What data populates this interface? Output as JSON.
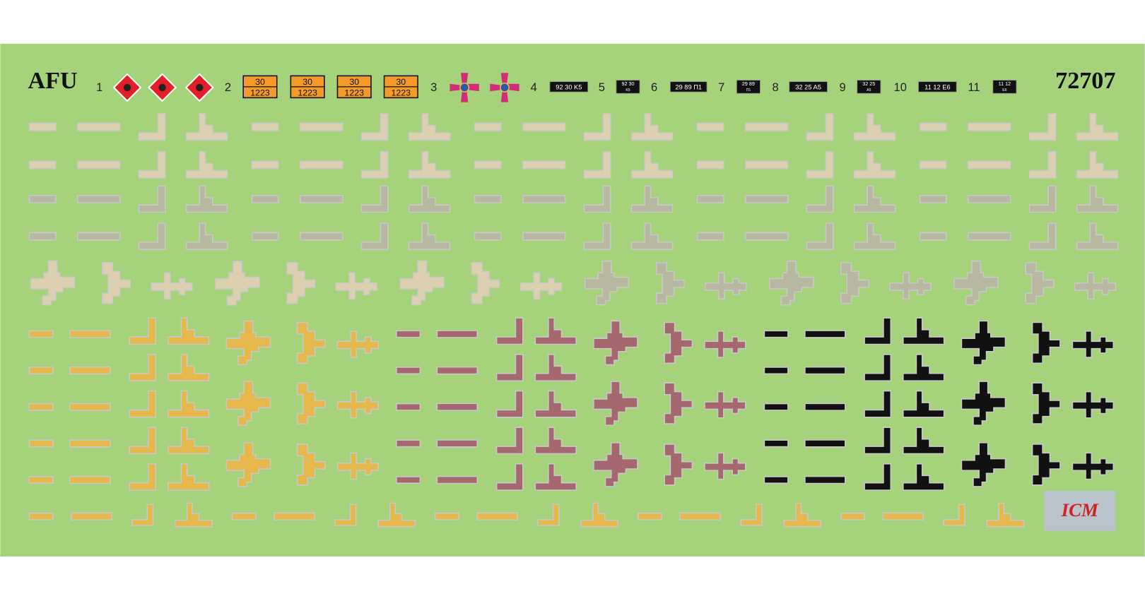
{
  "header": {
    "title": "AFU",
    "code": "72707"
  },
  "numbers": [
    "1",
    "2",
    "3",
    "4",
    "5",
    "6",
    "7",
    "8",
    "9",
    "10",
    "11"
  ],
  "hazard_plate": {
    "top": "30",
    "bottom": "1223"
  },
  "plates": [
    {
      "text": "92 30 K5"
    },
    {
      "top": "92 30",
      "bottom": "K5"
    },
    {
      "text": "29 89 П1"
    },
    {
      "top": "29 89",
      "bottom": "П1"
    },
    {
      "text": "32 25 A5"
    },
    {
      "top": "32 25",
      "bottom": "A5"
    },
    {
      "text": "11 12 E6"
    },
    {
      "top": "11 12",
      "bottom": "E6"
    }
  ],
  "logo": "ICM"
}
